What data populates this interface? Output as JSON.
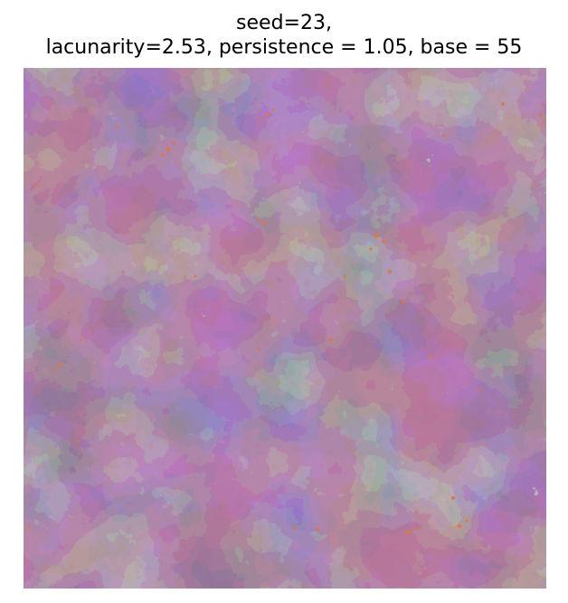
{
  "title": {
    "line1": "seed=23,",
    "line2": "lacunarity=2.53, persistence = 1.05, base = 55"
  },
  "image": {
    "description_name": "perlin-noise-field",
    "colors": {
      "base": "#6b3a5f",
      "low": "#3f6b94",
      "mid": "#5a4a78",
      "high": "#7d2f52",
      "peak": "#d9784a"
    }
  }
}
